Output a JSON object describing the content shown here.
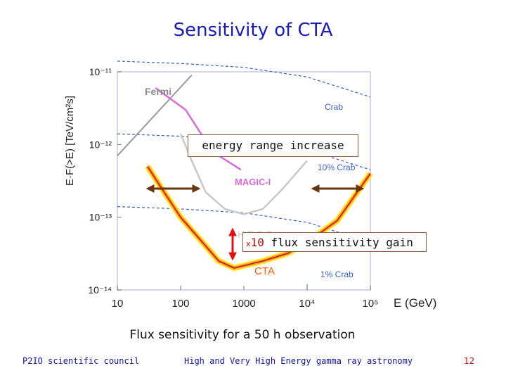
{
  "slide": {
    "title": "Sensitivity of CTA",
    "caption": "Flux sensitivity for a 50 h observation",
    "footer_left": "P2IO scientific council",
    "footer_center": "High and Very High Energy gamma ray astronomy",
    "page_number": "12"
  },
  "annotations": {
    "energy_range": "energy range increase",
    "flux_prefix": "x",
    "flux_number": "10",
    "flux_text": "flux sensitivity gain"
  },
  "colors": {
    "fermi": "#9a9a9a",
    "magic": "#d96bd6",
    "hess": "#c8c8c8",
    "cta_outer": "#ffee33",
    "cta_mid": "#ff9a33",
    "cta_line": "#c02010",
    "crab_lines": "#3a5fb8",
    "arrows": "#6b3410",
    "red_arrow": "#dd1111"
  },
  "chart_data": {
    "type": "line",
    "title": "",
    "xlabel": "E (GeV)",
    "ylabel": "E·F(>E) [TeV/cm²s]",
    "x_scale": "log",
    "y_scale": "log",
    "xlim": [
      10,
      100000
    ],
    "ylim": [
      1e-14,
      1e-11
    ],
    "x_ticks": [
      {
        "value": 10,
        "label": "10"
      },
      {
        "value": 100,
        "label": "100"
      },
      {
        "value": 1000,
        "label": "1000"
      },
      {
        "value": 10000,
        "label": "10⁴"
      },
      {
        "value": 100000,
        "label": "10⁵"
      }
    ],
    "y_ticks": [
      {
        "value": 1e-11,
        "label": "10⁻¹¹"
      },
      {
        "value": 1e-12,
        "label": "10⁻¹²"
      },
      {
        "value": 1e-13,
        "label": "10⁻¹³"
      },
      {
        "value": 1e-14,
        "label": "10⁻¹⁴"
      }
    ],
    "series": [
      {
        "name": "Fermi",
        "style": "solid",
        "points": [
          [
            10,
            7e-13
          ],
          [
            150,
            9e-12
          ]
        ]
      },
      {
        "name": "MAGIC-I",
        "style": "solid",
        "points": [
          [
            40,
            6e-12
          ],
          [
            120,
            3e-12
          ],
          [
            200,
            1.5e-12
          ],
          [
            400,
            7e-13
          ],
          [
            900,
            4.5e-13
          ]
        ]
      },
      {
        "name": "H.E.S.S.",
        "style": "solid",
        "points": [
          [
            100,
            1.4e-12
          ],
          [
            150,
            6e-13
          ],
          [
            250,
            2.2e-13
          ],
          [
            500,
            1.3e-13
          ],
          [
            1000,
            1.1e-13
          ],
          [
            2000,
            1.3e-13
          ],
          [
            4000,
            2.4e-13
          ],
          [
            10000,
            6e-13
          ]
        ]
      },
      {
        "name": "CTA",
        "style": "solid",
        "points": [
          [
            30,
            5e-13
          ],
          [
            50,
            2.5e-13
          ],
          [
            100,
            1e-13
          ],
          [
            200,
            5e-14
          ],
          [
            400,
            2.5e-14
          ],
          [
            700,
            2e-14
          ],
          [
            2000,
            2.5e-14
          ],
          [
            5000,
            3.2e-14
          ],
          [
            10000,
            4.5e-14
          ],
          [
            30000,
            9e-14
          ],
          [
            100000,
            4e-13
          ]
        ]
      },
      {
        "name": "Crab",
        "style": "dashed",
        "points": [
          [
            10,
            1.4e-11
          ],
          [
            100,
            1.3e-11
          ],
          [
            1000,
            1.15e-11
          ],
          [
            10000,
            8.5e-12
          ],
          [
            100000,
            4.5e-12
          ]
        ]
      },
      {
        "name": "10% Crab",
        "style": "dashed",
        "points": [
          [
            10,
            1.4e-12
          ],
          [
            100,
            1.3e-12
          ],
          [
            1000,
            1.15e-12
          ],
          [
            10000,
            8.5e-13
          ],
          [
            100000,
            4.5e-13
          ]
        ]
      },
      {
        "name": "1% Crab",
        "style": "dashed",
        "points": [
          [
            10,
            1.4e-13
          ],
          [
            100,
            1.3e-13
          ],
          [
            1000,
            1.15e-13
          ],
          [
            10000,
            8.5e-14
          ],
          [
            100000,
            4.5e-14
          ]
        ]
      }
    ],
    "curve_labels": [
      "Fermi",
      "MAGIC-I",
      "H.E.S.S.",
      "CTA",
      "Crab",
      "10% Crab",
      "1% Crab"
    ]
  }
}
